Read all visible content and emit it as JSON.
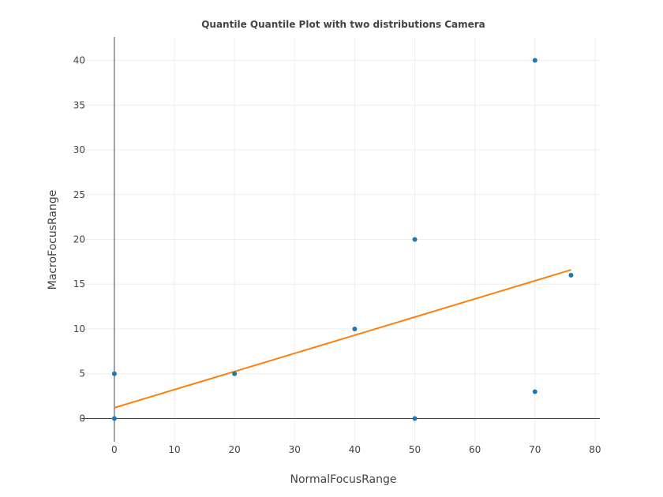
{
  "chart_data": {
    "type": "scatter",
    "title": "Quantile Quantile Plot with two distributions Camera",
    "xlabel": "NormalFocusRange",
    "ylabel": "MacroFocusRange",
    "xlim": [
      -5.5,
      80.8
    ],
    "ylim": [
      -2.6,
      42.6
    ],
    "xticks": [
      0,
      10,
      20,
      30,
      40,
      50,
      60,
      70,
      80
    ],
    "yticks": [
      0,
      5,
      10,
      15,
      20,
      25,
      30,
      35,
      40
    ],
    "grid": true,
    "legend": "none",
    "series": [
      {
        "mode": "markers",
        "color": "#1f77b4",
        "points": [
          {
            "x": 0,
            "y": 0
          },
          {
            "x": 0,
            "y": 5
          },
          {
            "x": 20,
            "y": 5
          },
          {
            "x": 40,
            "y": 10
          },
          {
            "x": 50,
            "y": 20
          },
          {
            "x": 50,
            "y": 0
          },
          {
            "x": 70,
            "y": 40
          },
          {
            "x": 70,
            "y": 3
          },
          {
            "x": 76,
            "y": 16
          }
        ]
      },
      {
        "mode": "line",
        "color": "#ff7f0e",
        "points": [
          {
            "x": 0,
            "y": 1.2
          },
          {
            "x": 76,
            "y": 16.6
          }
        ]
      }
    ]
  }
}
